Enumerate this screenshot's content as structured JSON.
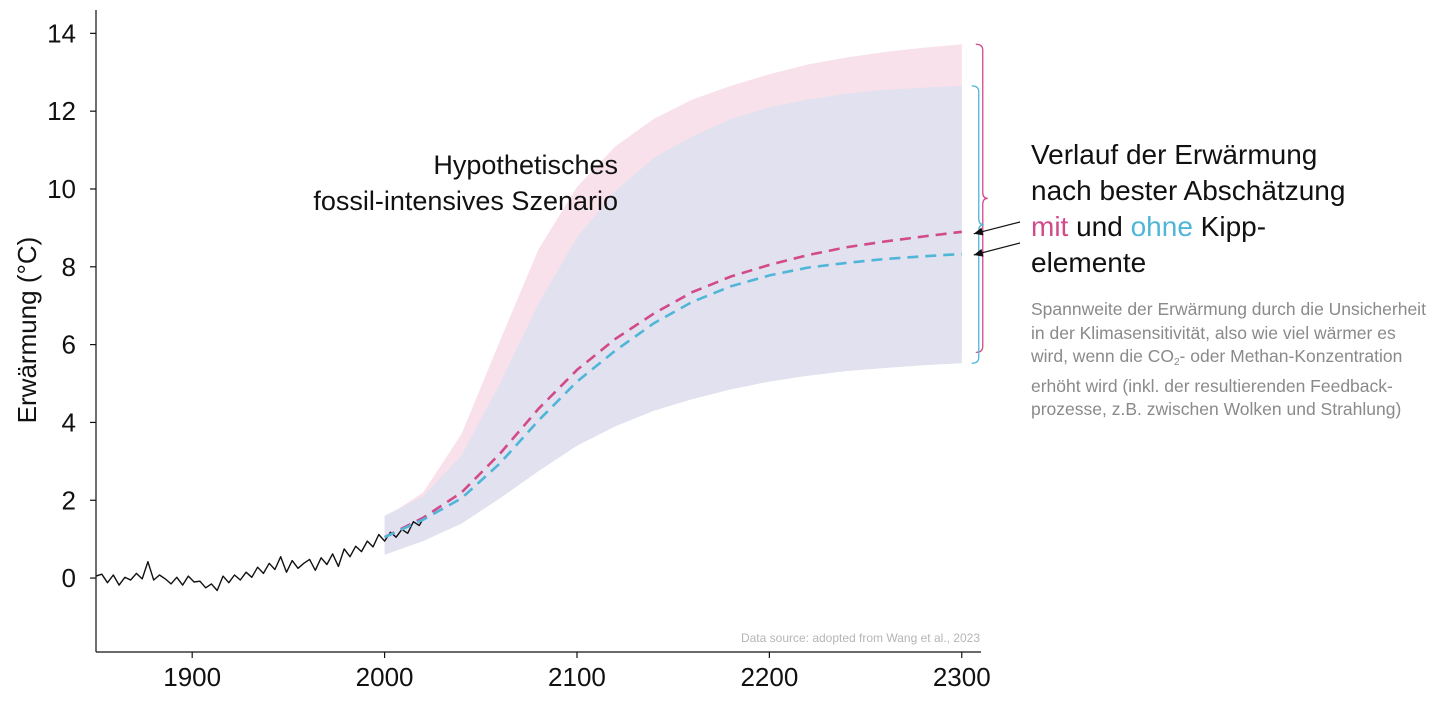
{
  "chart_data": {
    "type": "line",
    "ylabel": "Erwärmung (°C)",
    "xlabel": "",
    "xlim": [
      1850,
      2310
    ],
    "ylim": [
      -1.9,
      14.6
    ],
    "x_ticks": [
      1900,
      2000,
      2100,
      2200,
      2300
    ],
    "y_ticks": [
      0,
      2,
      4,
      6,
      8,
      10,
      12,
      14
    ],
    "grid": false,
    "annotation_scenario": [
      "Hypothetisches",
      "fossil-intensives Szenario"
    ],
    "source": "Data source: adopted from Wang et al., 2023",
    "observed": {
      "x": [
        1850,
        1853,
        1856,
        1859,
        1862,
        1865,
        1868,
        1871,
        1874,
        1877,
        1880,
        1883,
        1886,
        1889,
        1892,
        1895,
        1898,
        1901,
        1904,
        1907,
        1910,
        1913,
        1916,
        1919,
        1922,
        1925,
        1928,
        1931,
        1934,
        1937,
        1940,
        1943,
        1946,
        1949,
        1952,
        1955,
        1958,
        1961,
        1964,
        1967,
        1970,
        1973,
        1976,
        1979,
        1982,
        1985,
        1988,
        1991,
        1994,
        1997,
        2000,
        2003,
        2006,
        2009,
        2012,
        2015,
        2018,
        2021
      ],
      "y": [
        0.05,
        0.1,
        -0.12,
        0.08,
        -0.18,
        0.02,
        -0.05,
        0.12,
        -0.02,
        0.42,
        -0.05,
        0.08,
        -0.02,
        -0.15,
        0.02,
        -0.18,
        0.05,
        -0.1,
        -0.08,
        -0.25,
        -0.15,
        -0.32,
        0.05,
        -0.12,
        0.08,
        -0.05,
        0.15,
        0.02,
        0.28,
        0.12,
        0.38,
        0.22,
        0.55,
        0.15,
        0.45,
        0.25,
        0.38,
        0.48,
        0.2,
        0.52,
        0.35,
        0.62,
        0.3,
        0.75,
        0.55,
        0.82,
        0.68,
        0.95,
        0.8,
        1.12,
        0.95,
        1.18,
        1.05,
        1.25,
        1.15,
        1.45,
        1.35,
        1.6
      ]
    },
    "series": [
      {
        "name": "mit",
        "color": "#d24a8a",
        "dash": true,
        "x": [
          2000,
          2020,
          2040,
          2060,
          2080,
          2100,
          2120,
          2140,
          2160,
          2180,
          2200,
          2220,
          2240,
          2260,
          2280,
          2300
        ],
        "y": [
          1.05,
          1.55,
          2.2,
          3.2,
          4.35,
          5.35,
          6.15,
          6.8,
          7.35,
          7.75,
          8.05,
          8.3,
          8.5,
          8.65,
          8.78,
          8.9
        ]
      },
      {
        "name": "ohne",
        "color": "#4fb6d8",
        "dash": true,
        "x": [
          2000,
          2020,
          2040,
          2060,
          2080,
          2100,
          2120,
          2140,
          2160,
          2180,
          2200,
          2220,
          2240,
          2260,
          2280,
          2300
        ],
        "y": [
          1.05,
          1.5,
          2.05,
          2.95,
          4.05,
          5.05,
          5.85,
          6.55,
          7.1,
          7.5,
          7.78,
          7.98,
          8.1,
          8.2,
          8.27,
          8.33
        ]
      }
    ],
    "bands": [
      {
        "name": "range-mit",
        "color": "#f8e1ea",
        "x": [
          2000,
          2020,
          2040,
          2060,
          2080,
          2100,
          2120,
          2140,
          2160,
          2180,
          2200,
          2220,
          2240,
          2260,
          2280,
          2300
        ],
        "upper": [
          1.55,
          2.2,
          3.7,
          6.1,
          8.45,
          10.05,
          11.1,
          11.8,
          12.3,
          12.65,
          12.95,
          13.2,
          13.38,
          13.52,
          13.63,
          13.72
        ],
        "lower": [
          0.65,
          1.0,
          1.5,
          2.2,
          2.95,
          3.65,
          4.15,
          4.55,
          4.85,
          5.1,
          5.3,
          5.45,
          5.57,
          5.66,
          5.73,
          5.8
        ]
      },
      {
        "name": "range-ohne",
        "color": "#e1e1ef",
        "x": [
          2000,
          2020,
          2040,
          2060,
          2080,
          2100,
          2120,
          2140,
          2160,
          2180,
          2200,
          2220,
          2240,
          2260,
          2280,
          2300
        ],
        "upper": [
          1.6,
          2.1,
          3.15,
          5.0,
          7.05,
          8.75,
          9.95,
          10.8,
          11.35,
          11.8,
          12.1,
          12.3,
          12.45,
          12.55,
          12.6,
          12.65
        ],
        "lower": [
          0.6,
          0.95,
          1.4,
          2.05,
          2.75,
          3.4,
          3.9,
          4.3,
          4.6,
          4.85,
          5.05,
          5.2,
          5.32,
          5.4,
          5.47,
          5.52
        ]
      }
    ]
  },
  "legend": {
    "line1": "Verlauf der Erwärmung",
    "line2": "nach bester Abschätzung",
    "mit": "mit",
    "und": " und ",
    "ohne": "ohne",
    "kipp": " Kipp-",
    "line4": "elemente",
    "note_part1": "Spannweite der Erwärmung durch die Unsicherheit in der Klimasensitivität, also wie viel wärmer es wird, wenn die CO",
    "note_sub": "2",
    "note_part2": "- oder Methan-Konzentration erhöht wird (inkl. der resultierenden Feedback-prozesse, z.B. zwischen Wolken und Strahlung)"
  }
}
